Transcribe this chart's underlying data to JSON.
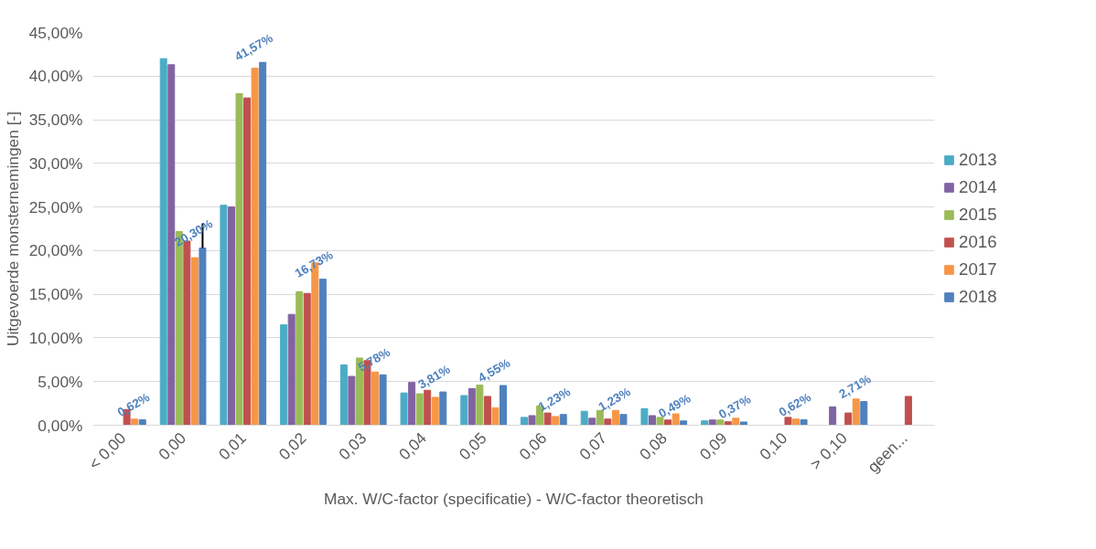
{
  "chart_data": {
    "type": "bar",
    "xlabel": "Max. W/C-factor (specificatie) - W/C-factor theoretisch",
    "ylabel": "Uitgevoerde monsternemingen [-]",
    "categories": [
      "< 0,00",
      "0,00",
      "0,01",
      "0,02",
      "0,03",
      "0,04",
      "0,05",
      "0,06",
      "0,07",
      "0,08",
      "0,09",
      "0,10",
      "> 0,10",
      "geen..."
    ],
    "series": [
      {
        "name": "2013",
        "color": "#4bacc6",
        "values": [
          null,
          42.0,
          25.2,
          11.5,
          6.9,
          3.7,
          3.4,
          0.9,
          1.6,
          1.9,
          0.5,
          null,
          null,
          null
        ]
      },
      {
        "name": "2014",
        "color": "#8064a2",
        "values": [
          null,
          41.3,
          25.0,
          12.7,
          5.6,
          4.9,
          4.2,
          1.1,
          0.8,
          1.1,
          0.6,
          null,
          2.1,
          null
        ]
      },
      {
        "name": "2015",
        "color": "#9bbb59",
        "values": [
          null,
          22.2,
          38.0,
          15.3,
          7.7,
          3.6,
          4.6,
          2.2,
          1.7,
          0.9,
          0.6,
          null,
          null,
          null
        ]
      },
      {
        "name": "2016",
        "color": "#c0504d",
        "values": [
          1.8,
          21.1,
          37.5,
          15.1,
          7.4,
          4.0,
          3.3,
          1.4,
          0.7,
          0.6,
          0.4,
          0.9,
          1.4,
          3.3
        ]
      },
      {
        "name": "2017",
        "color": "#f79646",
        "values": [
          0.7,
          19.2,
          40.9,
          18.6,
          6.1,
          3.2,
          2.0,
          1.0,
          1.7,
          1.3,
          0.8,
          0.7,
          3.0,
          null
        ]
      },
      {
        "name": "2018",
        "color": "#4f81bd",
        "values": [
          0.62,
          20.3,
          41.57,
          16.73,
          5.78,
          3.81,
          4.55,
          1.23,
          1.23,
          0.49,
          0.37,
          0.62,
          2.71,
          null
        ],
        "value_labels": [
          "0,62%",
          "20,30%",
          "41,57%",
          "16,73%",
          "5,78%",
          "3,81%",
          "4,55%",
          "1,23%",
          "1,23%",
          "0,49%",
          "0,37%",
          "0,62%",
          "2,71%",
          null
        ],
        "errors": [
          null,
          [
            20.3,
            23.1
          ],
          null,
          null,
          null,
          null,
          null,
          null,
          null,
          null,
          null,
          null,
          null,
          null
        ]
      }
    ],
    "ylim": [
      0,
      45
    ],
    "yticks": [
      {
        "value": 0,
        "label": "0,00%"
      },
      {
        "value": 5,
        "label": "5,00%"
      },
      {
        "value": 10,
        "label": "10,00%"
      },
      {
        "value": 15,
        "label": "15,00%"
      },
      {
        "value": 20,
        "label": "20,00%"
      },
      {
        "value": 25,
        "label": "25,00%"
      },
      {
        "value": 30,
        "label": "30,00%"
      },
      {
        "value": 35,
        "label": "35,00%"
      },
      {
        "value": 40,
        "label": "40,00%"
      },
      {
        "value": 45,
        "label": "45,00%"
      }
    ],
    "grid": "y",
    "legend": "right"
  }
}
